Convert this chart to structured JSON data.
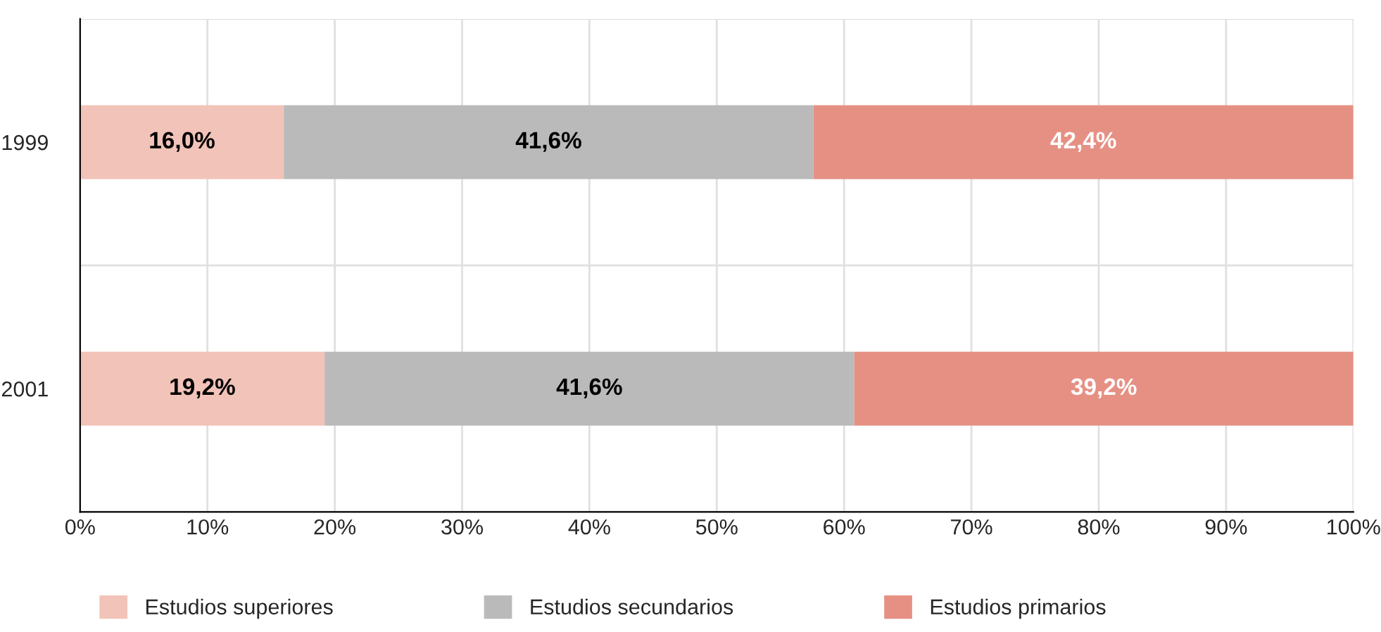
{
  "chart_data": {
    "type": "bar",
    "orientation": "horizontal",
    "stacked": true,
    "categories": [
      "1999",
      "2001"
    ],
    "series": [
      {
        "name": "Estudios superiores",
        "color": "#f2c3b8",
        "values": [
          16.0,
          19.2
        ],
        "value_labels": [
          "16,0%",
          "19,2%"
        ]
      },
      {
        "name": "Estudios secundarios",
        "color": "#bababa",
        "values": [
          41.6,
          41.6
        ],
        "value_labels": [
          "41,6%",
          "41,6%"
        ]
      },
      {
        "name": "Estudios primarios",
        "color": "#e69084",
        "values": [
          42.4,
          39.2
        ],
        "value_labels": [
          "42,4%",
          "39,2%"
        ]
      }
    ],
    "xlim": [
      0,
      100
    ],
    "xticks": [
      {
        "value": 0,
        "label": "0%"
      },
      {
        "value": 10,
        "label": "10%"
      },
      {
        "value": 20,
        "label": "20%"
      },
      {
        "value": 30,
        "label": "30%"
      },
      {
        "value": 40,
        "label": "40%"
      },
      {
        "value": 50,
        "label": "50%"
      },
      {
        "value": 60,
        "label": "60%"
      },
      {
        "value": 70,
        "label": "70%"
      },
      {
        "value": 80,
        "label": "80%"
      },
      {
        "value": 90,
        "label": "90%"
      },
      {
        "value": 100,
        "label": "100%"
      }
    ],
    "grid": true,
    "legend": "bottom"
  }
}
